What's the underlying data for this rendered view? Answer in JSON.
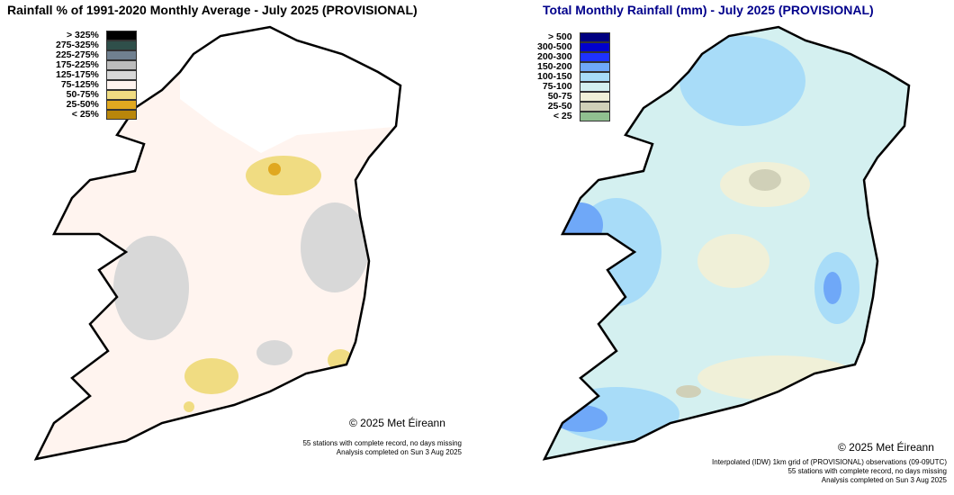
{
  "left_map": {
    "title": "Rainfall % of  1991-2020  Monthly Average - July 2025  (PROVISIONAL)",
    "title_color": "#000000",
    "legend": [
      {
        "label": "> 325%",
        "color": "#000000"
      },
      {
        "label": "275-325%",
        "color": "#2f4f4a"
      },
      {
        "label": "225-275%",
        "color": "#708090"
      },
      {
        "label": "175-225%",
        "color": "#bcbcbc"
      },
      {
        "label": "125-175%",
        "color": "#d8d8d8"
      },
      {
        "label": "75-125%",
        "color": "#fff4ef"
      },
      {
        "label": "50-75%",
        "color": "#f0dc82"
      },
      {
        "label": "25-50%",
        "color": "#e0a820"
      },
      {
        "label": "< 25%",
        "color": "#b8860b"
      }
    ],
    "copyright": "© 2025 Met Éireann",
    "notes": [
      "55 stations with complete record, no days missing",
      "Analysis completed on Sun 3 Aug 2025"
    ]
  },
  "right_map": {
    "title": "Total Monthly Rainfall (mm) - July 2025  (PROVISIONAL)",
    "title_color": "#00008b",
    "legend": [
      {
        "label": "> 500",
        "color": "#000080"
      },
      {
        "label": "300-500",
        "color": "#0000cd"
      },
      {
        "label": "200-300",
        "color": "#1e32ff"
      },
      {
        "label": "150-200",
        "color": "#6fa8f8"
      },
      {
        "label": "100-150",
        "color": "#a8dcf8"
      },
      {
        "label": "75-100",
        "color": "#d4f0f0"
      },
      {
        "label": "50-75",
        "color": "#f0f0d8"
      },
      {
        "label": "25-50",
        "color": "#d0d0b8"
      },
      {
        "label": "< 25",
        "color": "#90c090"
      }
    ],
    "copyright": "© 2025 Met Éireann",
    "notes": [
      "Interpolated (IDW) 1km grid of  (PROVISIONAL) observations (09-09UTC)",
      "55 stations with complete record, no days missing",
      "Analysis completed on Sun 3 Aug 2025"
    ]
  }
}
